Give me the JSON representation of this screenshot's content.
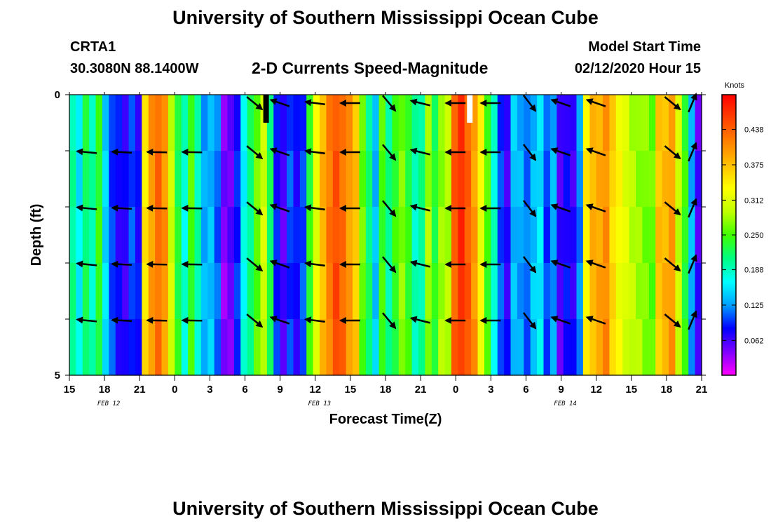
{
  "header": {
    "title": "University of Southern Mississippi Ocean Cube",
    "station": "CRTA1",
    "coords": "30.3080N 88.1400W",
    "plot_title": "2-D Currents Speed-Magnitude",
    "model_label": "Model Start Time",
    "model_time": "02/12/2020 Hour 15"
  },
  "footer": {
    "title": "University of Southern Mississippi Ocean Cube"
  },
  "chart_data": {
    "type": "heatmap",
    "title": "2-D Currents Speed-Magnitude",
    "xlabel": "Forecast Time(Z)",
    "ylabel": "Depth (ft)",
    "x_tick_labels": [
      "15",
      "18",
      "21",
      "0",
      "3",
      "6",
      "9",
      "12",
      "15",
      "18",
      "21",
      "0",
      "3",
      "6",
      "9",
      "12",
      "15",
      "18",
      "21"
    ],
    "x_date_labels": [
      {
        "label": "FEB 12",
        "at_tick": 1
      },
      {
        "label": "FEB 13",
        "at_tick": 7
      },
      {
        "label": "FEB 14",
        "at_tick": 14
      }
    ],
    "y_tick_labels": [
      {
        "value": 0,
        "label": "0"
      },
      {
        "value": 5,
        "label": "5"
      }
    ],
    "y_range": [
      0,
      5
    ],
    "hours_span": 54,
    "depth_layers": [
      0,
      1,
      2,
      3,
      4
    ],
    "colorbar": {
      "unit_label": "Knots",
      "min": 0.0,
      "max": 0.5,
      "ticks": [
        "0.062",
        "0.125",
        "0.188",
        "0.250",
        "0.312",
        "0.375",
        "0.438"
      ],
      "colors": [
        "#ff00ff",
        "#8000ff",
        "#0000ff",
        "#00a0ff",
        "#00ffff",
        "#00ff80",
        "#40ff00",
        "#c0ff00",
        "#ffff00",
        "#ffc000",
        "#ff8000",
        "#ff4000",
        "#ff0000"
      ]
    },
    "speed_columns": [
      0.2,
      0.16,
      0.22,
      0.19,
      0.24,
      0.15,
      0.1,
      0.08,
      0.07,
      0.1,
      0.08,
      0.35,
      0.4,
      0.43,
      0.4,
      0.3,
      0.23,
      0.18,
      0.25,
      0.19,
      0.13,
      0.14,
      0.11,
      0.04,
      0.05,
      0.09,
      0.17,
      0.21,
      0.26,
      0.3,
      0.22,
      0.09,
      0.06,
      0.1,
      0.08,
      0.1,
      0.24,
      0.32,
      0.38,
      0.42,
      0.45,
      0.43,
      0.4,
      0.37,
      0.26,
      0.21,
      0.14,
      0.25,
      0.2,
      0.24,
      0.27,
      0.24,
      0.19,
      0.2,
      0.28,
      0.23,
      0.28,
      0.29,
      0.44,
      0.47,
      0.44,
      0.4,
      0.33,
      0.25,
      0.18,
      0.1,
      0.07,
      0.14,
      0.13,
      0.11,
      0.14,
      0.16,
      0.1,
      0.13,
      0.06,
      0.08,
      0.07,
      0.12,
      0.34,
      0.38,
      0.39,
      0.41,
      0.36,
      0.33,
      0.31,
      0.29,
      0.28,
      0.27,
      0.26,
      0.37,
      0.38,
      0.4,
      0.3,
      0.24,
      0.13,
      0.06
    ],
    "missing_cells": [
      {
        "hour": 16.8,
        "color": "#000000"
      },
      {
        "hour": 34.2,
        "color": "#ffffff"
      }
    ],
    "vectors": [
      {
        "hour": 1.5,
        "u": -1.0,
        "v": 0.1,
        "layers": [
          1,
          2,
          3,
          4
        ]
      },
      {
        "hour": 4.5,
        "u": -1.0,
        "v": 0.05,
        "layers": [
          1,
          2,
          3,
          4
        ]
      },
      {
        "hour": 7.5,
        "u": -1.0,
        "v": 0.02,
        "layers": [
          1,
          2,
          3,
          4
        ]
      },
      {
        "hour": 10.5,
        "u": -1.0,
        "v": 0.02,
        "layers": [
          1,
          2,
          3,
          4
        ]
      },
      {
        "hour": 15.8,
        "u": 0.55,
        "v": -0.45,
        "layers": [
          0,
          1,
          2,
          3,
          4
        ]
      },
      {
        "hour": 18.0,
        "u": -1.0,
        "v": 0.35,
        "layers": [
          0,
          1,
          2,
          3,
          4
        ]
      },
      {
        "hour": 21.0,
        "u": -1.0,
        "v": 0.12,
        "layers": [
          0,
          1,
          2,
          3,
          4
        ]
      },
      {
        "hour": 24.0,
        "u": -1.0,
        "v": 0.0,
        "layers": [
          0,
          1,
          2,
          3,
          4
        ]
      },
      {
        "hour": 27.3,
        "u": 0.5,
        "v": -0.6,
        "layers": [
          0,
          1,
          2,
          3,
          4
        ]
      },
      {
        "hour": 30.0,
        "u": -1.0,
        "v": 0.25,
        "layers": [
          0,
          1,
          2,
          3,
          4
        ]
      },
      {
        "hour": 33.0,
        "u": -1.0,
        "v": 0.0,
        "layers": [
          0,
          1,
          2,
          3,
          4
        ]
      },
      {
        "hour": 36.0,
        "u": -1.0,
        "v": 0.0,
        "layers": [
          0,
          1,
          2,
          3,
          4
        ]
      },
      {
        "hour": 39.3,
        "u": 0.5,
        "v": -0.65,
        "layers": [
          0,
          1,
          2,
          3,
          4
        ]
      },
      {
        "hour": 42.0,
        "u": -1.0,
        "v": 0.35,
        "layers": [
          0,
          1,
          2,
          3,
          4
        ]
      },
      {
        "hour": 45.0,
        "u": -1.0,
        "v": 0.35,
        "layers": [
          0,
          1,
          2,
          3,
          4
        ]
      },
      {
        "hour": 51.5,
        "u": 0.55,
        "v": -0.45,
        "layers": [
          0,
          1,
          2,
          3,
          4
        ]
      },
      {
        "hour": 53.2,
        "u": 0.35,
        "v": 0.85,
        "layers": [
          0,
          1,
          2,
          3,
          4
        ]
      }
    ]
  }
}
